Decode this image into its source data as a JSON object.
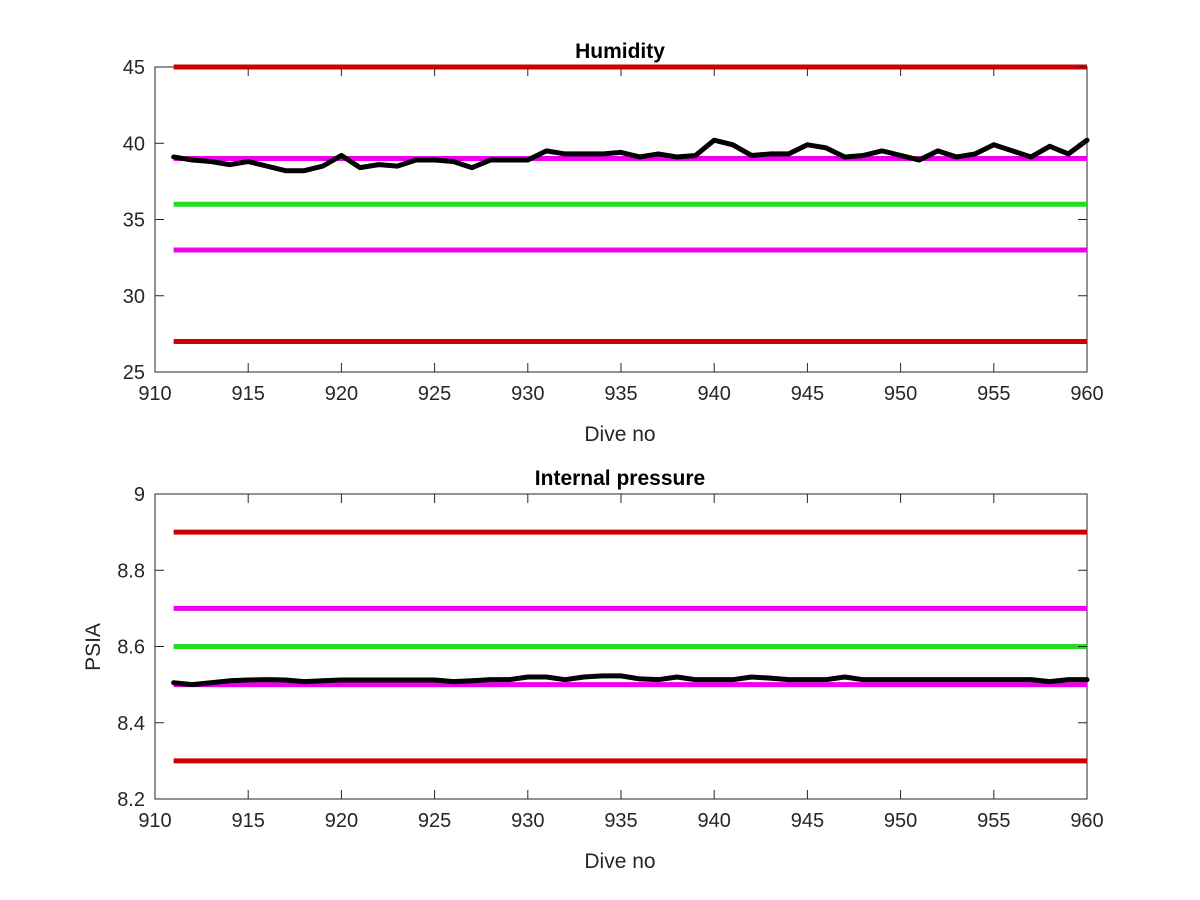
{
  "chart_data": [
    {
      "type": "line",
      "title": "Humidity",
      "xlabel": "Dive no",
      "ylabel": "",
      "xlim": [
        910,
        960
      ],
      "ylim": [
        25,
        45
      ],
      "xticks": [
        910,
        915,
        920,
        925,
        930,
        935,
        940,
        945,
        950,
        955,
        960
      ],
      "yticks": [
        25,
        30,
        35,
        40,
        45
      ],
      "grid": false,
      "reference_lines": [
        {
          "y": 45,
          "color": "#cc0000"
        },
        {
          "y": 27,
          "color": "#cc0000"
        },
        {
          "y": 39,
          "color": "#ee00ee"
        },
        {
          "y": 33,
          "color": "#ee00ee"
        },
        {
          "y": 36,
          "color": "#22dd22"
        }
      ],
      "series": [
        {
          "color": "#000000",
          "x": [
            911,
            912,
            913,
            914,
            915,
            916,
            917,
            918,
            919,
            920,
            921,
            922,
            923,
            924,
            925,
            926,
            927,
            928,
            929,
            930,
            931,
            932,
            933,
            934,
            935,
            936,
            937,
            938,
            939,
            940,
            941,
            942,
            943,
            944,
            945,
            946,
            947,
            948,
            949,
            950,
            951,
            952,
            953,
            954,
            955,
            956,
            957,
            958,
            959,
            960
          ],
          "y": [
            39.1,
            38.9,
            38.8,
            38.6,
            38.8,
            38.5,
            38.2,
            38.2,
            38.5,
            39.2,
            38.4,
            38.6,
            38.5,
            38.9,
            38.9,
            38.8,
            38.4,
            38.9,
            38.9,
            38.9,
            39.5,
            39.3,
            39.3,
            39.3,
            39.4,
            39.1,
            39.3,
            39.1,
            39.2,
            40.2,
            39.9,
            39.2,
            39.3,
            39.3,
            39.9,
            39.7,
            39.1,
            39.2,
            39.5,
            39.2,
            38.9,
            39.5,
            39.1,
            39.3,
            39.9,
            39.5,
            39.1,
            39.8,
            39.3,
            40.2
          ]
        }
      ]
    },
    {
      "type": "line",
      "title": "Internal pressure",
      "xlabel": "Dive no",
      "ylabel": "PSIA",
      "xlim": [
        910,
        960
      ],
      "ylim": [
        8.2,
        9
      ],
      "xticks": [
        910,
        915,
        920,
        925,
        930,
        935,
        940,
        945,
        950,
        955,
        960
      ],
      "yticks": [
        8.2,
        8.4,
        8.6,
        8.8,
        9
      ],
      "grid": false,
      "reference_lines": [
        {
          "y": 8.9,
          "color": "#cc0000"
        },
        {
          "y": 8.3,
          "color": "#cc0000"
        },
        {
          "y": 8.7,
          "color": "#ee00ee"
        },
        {
          "y": 8.5,
          "color": "#ee00ee"
        },
        {
          "y": 8.6,
          "color": "#22dd22"
        }
      ],
      "series": [
        {
          "color": "#000000",
          "x": [
            911,
            912,
            913,
            914,
            915,
            916,
            917,
            918,
            919,
            920,
            921,
            922,
            923,
            924,
            925,
            926,
            927,
            928,
            929,
            930,
            931,
            932,
            933,
            934,
            935,
            936,
            937,
            938,
            939,
            940,
            941,
            942,
            943,
            944,
            945,
            946,
            947,
            948,
            949,
            950,
            951,
            952,
            953,
            954,
            955,
            956,
            957,
            958,
            959,
            960
          ],
          "y": [
            8.505,
            8.5,
            8.505,
            8.51,
            8.512,
            8.513,
            8.512,
            8.508,
            8.51,
            8.512,
            8.512,
            8.512,
            8.512,
            8.512,
            8.512,
            8.508,
            8.51,
            8.513,
            8.513,
            8.52,
            8.52,
            8.513,
            8.52,
            8.523,
            8.523,
            8.515,
            8.513,
            8.52,
            8.513,
            8.513,
            8.513,
            8.52,
            8.517,
            8.513,
            8.513,
            8.513,
            8.52,
            8.513,
            8.513,
            8.513,
            8.513,
            8.513,
            8.513,
            8.513,
            8.513,
            8.513,
            8.513,
            8.508,
            8.513,
            8.513
          ]
        }
      ]
    }
  ]
}
